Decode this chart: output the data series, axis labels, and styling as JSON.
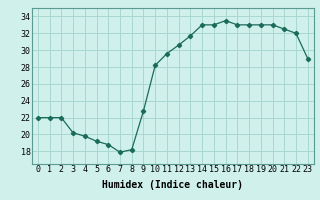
{
  "x": [
    0,
    1,
    2,
    3,
    4,
    5,
    6,
    7,
    8,
    9,
    10,
    11,
    12,
    13,
    14,
    15,
    16,
    17,
    18,
    19,
    20,
    21,
    22,
    23
  ],
  "y": [
    22,
    22,
    22,
    20.2,
    19.8,
    19.2,
    18.8,
    17.9,
    18.2,
    22.8,
    28.2,
    29.6,
    30.6,
    31.7,
    33.0,
    33.0,
    33.5,
    33.0,
    33.0,
    33.0,
    33.0,
    32.5,
    32.0,
    29.0
  ],
  "xlabel": "Humidex (Indice chaleur)",
  "ylabel": "",
  "ylim": [
    16.5,
    35
  ],
  "xlim": [
    -0.5,
    23.5
  ],
  "yticks": [
    18,
    20,
    22,
    24,
    26,
    28,
    30,
    32,
    34
  ],
  "xtick_labels": [
    "0",
    "1",
    "2",
    "3",
    "4",
    "5",
    "6",
    "7",
    "8",
    "9",
    "10",
    "11",
    "12",
    "13",
    "14",
    "15",
    "16",
    "17",
    "18",
    "19",
    "20",
    "21",
    "22",
    "23"
  ],
  "line_color": "#1a6b5a",
  "marker": "D",
  "marker_size": 2.2,
  "bg_color": "#cff0eb",
  "grid_color": "#a8d8d0",
  "label_fontsize": 7,
  "tick_fontsize": 6
}
